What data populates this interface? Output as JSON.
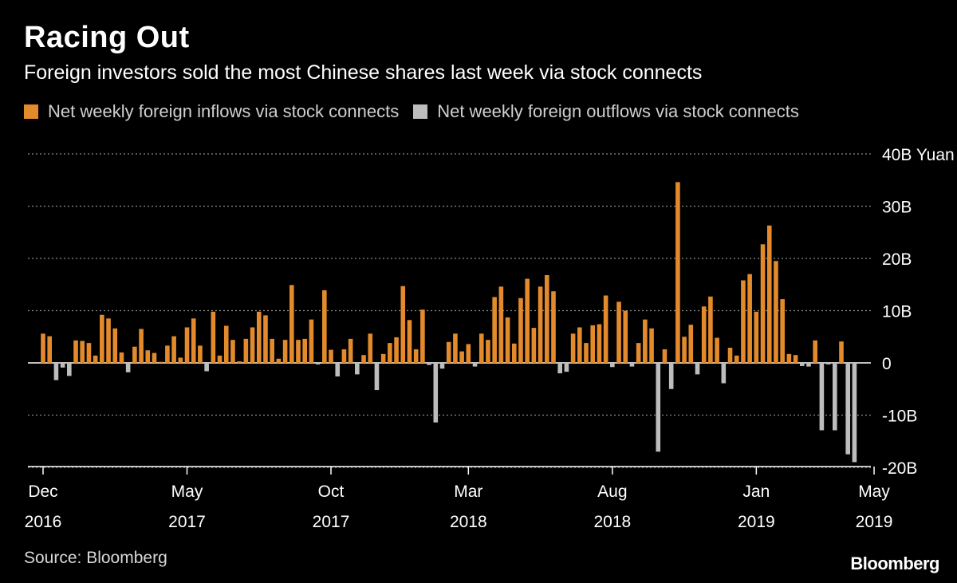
{
  "title": "Racing Out",
  "subtitle": "Foreign investors sold the most Chinese shares last week via stock connects",
  "legend": {
    "inflow_label": "Net weekly foreign inflows via stock connects",
    "outflow_label": "Net weekly foreign outflows via stock connects"
  },
  "source": "Source: Bloomberg",
  "logo": "Bloomberg",
  "colors": {
    "inflow": "#e38b2c",
    "outflow": "#bdbdbd",
    "background": "#000000",
    "grid": "#8a8a8a"
  },
  "chart_data": {
    "type": "bar",
    "unit": "Yuan",
    "ylim": [
      -20,
      40
    ],
    "y_ticks": [
      {
        "value": 40,
        "label": "40B Yuan"
      },
      {
        "value": 30,
        "label": "30B"
      },
      {
        "value": 20,
        "label": "20B"
      },
      {
        "value": 10,
        "label": "10B"
      },
      {
        "value": 0,
        "label": "0"
      },
      {
        "value": -10,
        "label": "-10B"
      },
      {
        "value": -20,
        "label": "-20B"
      }
    ],
    "x_ticks": [
      {
        "index": 0,
        "month": "Dec",
        "year": "2016"
      },
      {
        "index": 22,
        "month": "May",
        "year": "2017"
      },
      {
        "index": 44,
        "month": "Oct",
        "year": "2017"
      },
      {
        "index": 65,
        "month": "Mar",
        "year": "2018"
      },
      {
        "index": 87,
        "month": "Aug",
        "year": "2018"
      },
      {
        "index": 109,
        "month": "Jan",
        "year": "2019"
      },
      {
        "index": 127,
        "month": "May",
        "year": "2019"
      }
    ],
    "series_name": "Net weekly foreign flows via stock connects (B Yuan)",
    "values": [
      5.6,
      5.1,
      -3.3,
      -0.9,
      -2.5,
      4.3,
      4.2,
      3.8,
      1.4,
      9.2,
      8.5,
      6.6,
      2.0,
      -1.8,
      3.1,
      6.5,
      2.4,
      1.9,
      0.2,
      3.3,
      5.1,
      1.0,
      6.8,
      8.5,
      3.3,
      -1.6,
      9.8,
      1.4,
      7.1,
      4.4,
      0.3,
      4.6,
      6.8,
      9.8,
      9.1,
      4.6,
      0.8,
      4.4,
      14.9,
      4.4,
      4.6,
      8.3,
      -0.3,
      13.9,
      2.5,
      -2.6,
      2.6,
      4.6,
      -2.2,
      1.5,
      5.6,
      -5.2,
      1.7,
      3.8,
      4.9,
      14.7,
      8.2,
      2.6,
      10.2,
      -0.4,
      -11.4,
      -1.1,
      4.0,
      5.6,
      2.2,
      3.6,
      -0.7,
      5.6,
      4.4,
      12.6,
      14.6,
      8.7,
      3.7,
      12.4,
      16.1,
      6.7,
      14.6,
      16.8,
      13.7,
      -2.0,
      -1.7,
      5.6,
      6.8,
      3.8,
      7.2,
      7.4,
      12.9,
      -0.8,
      11.7,
      10.0,
      -0.7,
      3.8,
      8.3,
      6.6,
      -17.0,
      2.6,
      -5.0,
      34.6,
      5.0,
      7.3,
      -2.2,
      10.8,
      12.7,
      4.8,
      -3.9,
      2.9,
      1.4,
      15.8,
      17.0,
      9.8,
      22.7,
      26.3,
      19.5,
      12.2,
      1.7,
      1.5,
      -0.6,
      -0.7,
      4.3,
      -12.9,
      -0.3,
      -12.9,
      4.1,
      -17.5,
      -19.0
    ]
  }
}
